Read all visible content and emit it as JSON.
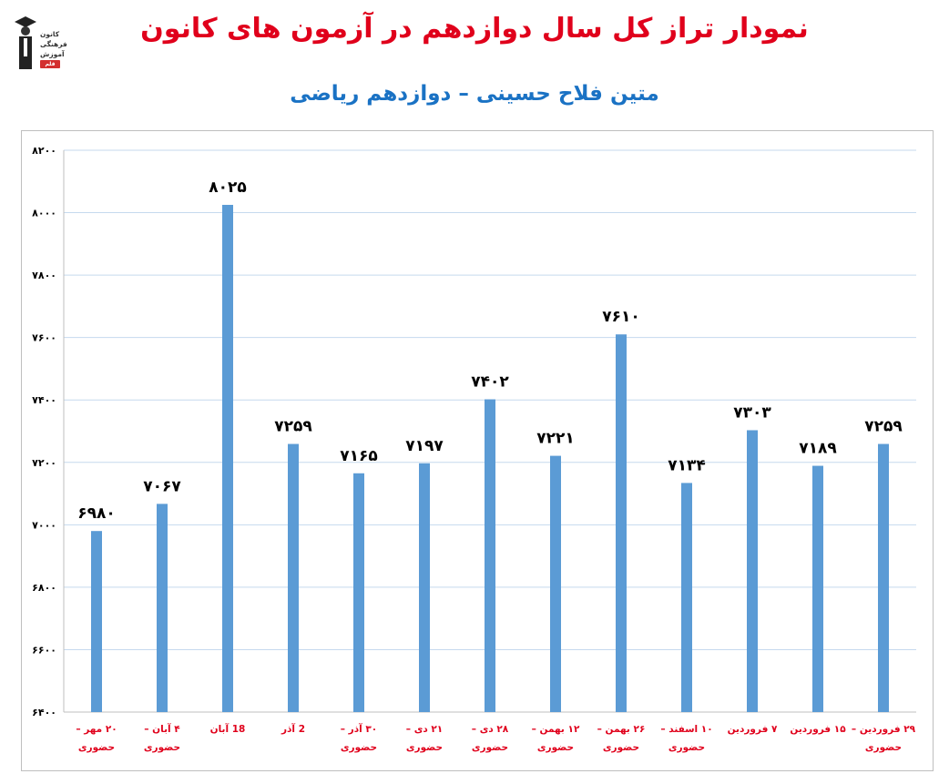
{
  "title": "نمودار تراز کل سال دوازدهم در آزمون های کانون",
  "subtitle": "متین فلاح حسینی – دوازدهم ریاضی",
  "logo": {
    "icon": "graduate-icon",
    "lines": [
      "کانون",
      "فرهنگی",
      "آموزش"
    ],
    "badge": "قلم چی"
  },
  "chart_data": {
    "type": "bar",
    "categories": [
      [
        "۲۰ مهر –",
        "حضوری"
      ],
      [
        "۴ آبان –",
        "حضوری"
      ],
      [
        "18 آبان"
      ],
      [
        "2 آذر"
      ],
      [
        "۳۰ آذر –",
        "حضوری"
      ],
      [
        "۲۱ دی –",
        "حضوری"
      ],
      [
        "۲۸ دی –",
        "حضوری"
      ],
      [
        "۱۲ بهمن –",
        "حضوری"
      ],
      [
        "۲۶ بهمن –",
        "حضوری"
      ],
      [
        "۱۰ اسفند –",
        "حضوری"
      ],
      [
        "۷ فروردین"
      ],
      [
        "۱۵ فروردین"
      ],
      [
        "۲۹ فروردین –",
        "حضوری"
      ]
    ],
    "values": [
      6980,
      7067,
      8025,
      7259,
      7165,
      7197,
      7402,
      7221,
      7610,
      7134,
      7303,
      7189,
      7259
    ],
    "data_labels": [
      "۶۹۸۰",
      "۷۰۶۷",
      "۸۰۲۵",
      "۷۲۵۹",
      "۷۱۶۵",
      "۷۱۹۷",
      "۷۴۰۲",
      "۷۲۲۱",
      "۷۶۱۰",
      "۷۱۳۴",
      "۷۳۰۳",
      "۷۱۸۹",
      "۷۲۵۹"
    ],
    "ylim": [
      6400,
      8200
    ],
    "yticks": [
      6400,
      6600,
      6800,
      7000,
      7200,
      7400,
      7600,
      7800,
      8000,
      8200
    ],
    "ytick_labels": [
      "۶۴۰۰",
      "۶۶۰۰",
      "۶۸۰۰",
      "۷۰۰۰",
      "۷۲۰۰",
      "۷۴۰۰",
      "۷۶۰۰",
      "۷۸۰۰",
      "۸۰۰۰",
      "۸۲۰۰"
    ],
    "grid": true,
    "bar_color": "#5b9bd5",
    "tick_label_color": "#e0001b",
    "grid_color": "#c5d9ee"
  }
}
